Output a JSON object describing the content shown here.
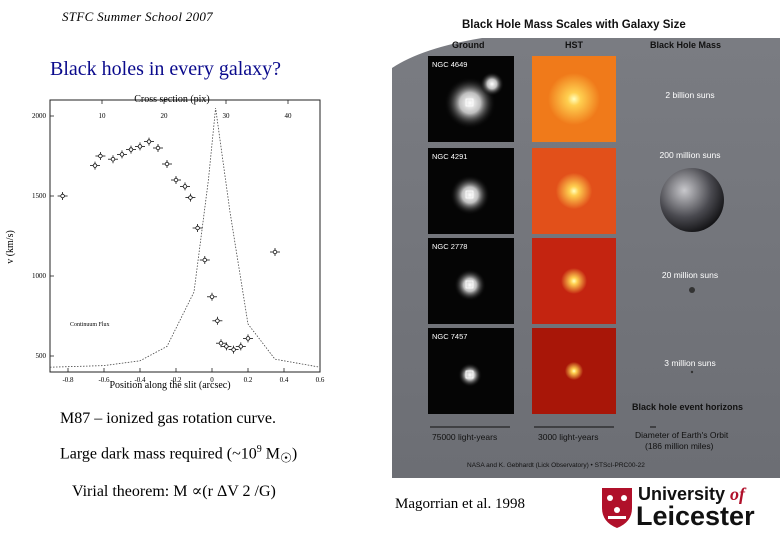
{
  "header": {
    "school": "STFC  Summer  School  2007"
  },
  "title": "Black holes in every galaxy?",
  "chart_data": {
    "type": "scatter",
    "top_axis_label": "Cross section (pix)",
    "top_ticks": [
      "10",
      "20",
      "30",
      "40"
    ],
    "xlabel": "Position along the slit (arcsec)",
    "ylabel": "v (km/s)",
    "xlim": [
      -0.9,
      0.6
    ],
    "ylim": [
      400,
      2100
    ],
    "x_ticks": [
      "-0.8",
      "-0.6",
      "-0.4",
      "-0.2",
      "0",
      "0.2",
      "0.4",
      "0.6"
    ],
    "y_ticks": [
      "2000",
      "1500",
      "1000",
      "500"
    ],
    "annotation": "Continuum Flux",
    "series": [
      {
        "name": "gas velocity",
        "x": [
          -0.83,
          -0.65,
          -0.62,
          -0.55,
          -0.5,
          -0.45,
          -0.4,
          -0.35,
          -0.3,
          -0.25,
          -0.2,
          -0.15,
          -0.12,
          -0.08,
          -0.04,
          0.0,
          0.03,
          0.05,
          0.08,
          0.12,
          0.16,
          0.2,
          0.35
        ],
        "y": [
          1500,
          1690,
          1750,
          1730,
          1760,
          1790,
          1810,
          1840,
          1800,
          1700,
          1600,
          1560,
          1490,
          1300,
          1100,
          870,
          720,
          580,
          560,
          540,
          560,
          610,
          1150
        ]
      }
    ],
    "continuum": {
      "name": "continuum flux",
      "x": [
        -0.9,
        -0.6,
        -0.4,
        -0.25,
        -0.1,
        -0.02,
        0.02,
        0.1,
        0.2,
        0.35,
        0.6
      ],
      "y": [
        430,
        440,
        470,
        560,
        900,
        1600,
        2050,
        1400,
        700,
        480,
        430
      ]
    }
  },
  "captions": {
    "rotation": "M87 – ionized gas rotation curve.",
    "dark_mass_prefix": "Large dark mass required (~10",
    "dark_mass_exp": "9",
    "dark_mass_suffix": " M",
    "dark_mass_sub": "☉",
    "dark_mass_close": ")",
    "virial": "Virial theorem: M ∝(r ΔV 2 /G)"
  },
  "panel": {
    "title": "Black Hole Mass Scales with Galaxy Size",
    "col_ground": "Ground",
    "col_hst": "HST",
    "col_mass": "Black Hole Mass",
    "rows": [
      {
        "galaxy": "NGC 4649",
        "mass": "2 billion suns",
        "color": "#f07a1a"
      },
      {
        "galaxy": "NGC 4291",
        "mass": "200 million suns",
        "color": "#e2501a"
      },
      {
        "galaxy": "NGC 2778",
        "mass": "20 million suns",
        "color": "#c42410"
      },
      {
        "galaxy": "NGC 7457",
        "mass": "3 million suns",
        "color": "#a81608"
      }
    ],
    "horizons": "Black hole event horizons",
    "scale_ground": "75000 light-years",
    "scale_hst": "3000 light-years",
    "scale_diameter_1": "Diameter of Earth's Orbit",
    "scale_diameter_2": "(186 million miles)",
    "footer": "NASA and K. Gebhardt (Lick Observatory) • STScI-PRC00-22"
  },
  "credit": "Magorrian et al. 1998",
  "logo": {
    "line1_a": "University ",
    "line1_b": "of",
    "line2": "Leicester",
    "crest_color": "#b0102a"
  }
}
